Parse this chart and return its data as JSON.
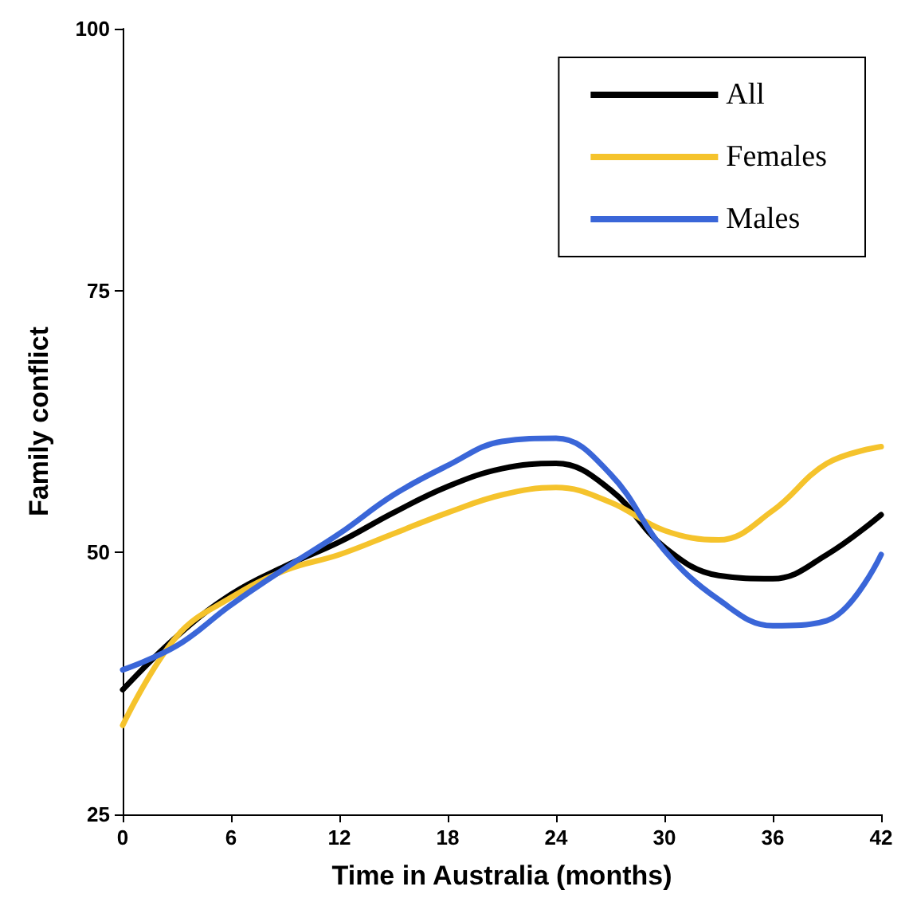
{
  "chart_data": {
    "type": "line",
    "xlabel": "Time in Australia (months)",
    "ylabel": "Family conflict",
    "x": [
      0,
      3,
      6,
      9,
      12,
      15,
      18,
      21,
      24,
      27,
      30,
      33,
      36,
      39,
      42
    ],
    "series": [
      {
        "name": "All",
        "color": "#000000",
        "values": [
          36.9,
          42.0,
          46.0,
          48.7,
          51.0,
          53.8,
          56.3,
          58.0,
          58.5,
          56.0,
          50.5,
          47.8,
          47.5,
          49.8,
          53.6
        ]
      },
      {
        "name": "Females",
        "color": "#f5c32c",
        "values": [
          33.5,
          42.0,
          45.7,
          48.3,
          49.8,
          51.8,
          53.8,
          55.5,
          56.2,
          54.8,
          52.1,
          51.2,
          54.0,
          58.5,
          60.1
        ]
      },
      {
        "name": "Males",
        "color": "#3a66d8",
        "values": [
          38.8,
          41.1,
          45.0,
          48.5,
          51.8,
          55.5,
          58.3,
          60.6,
          60.9,
          57.5,
          50.2,
          45.5,
          43.0,
          43.5,
          49.8
        ]
      }
    ],
    "xlim": [
      0,
      42
    ],
    "xticks": [
      0,
      6,
      12,
      18,
      24,
      30,
      36,
      42
    ],
    "ylim": [
      25,
      100
    ],
    "yticks": [
      25,
      50,
      75,
      100
    ],
    "grid": false,
    "legend": "top right",
    "marker": "none",
    "line_style": "solid"
  }
}
